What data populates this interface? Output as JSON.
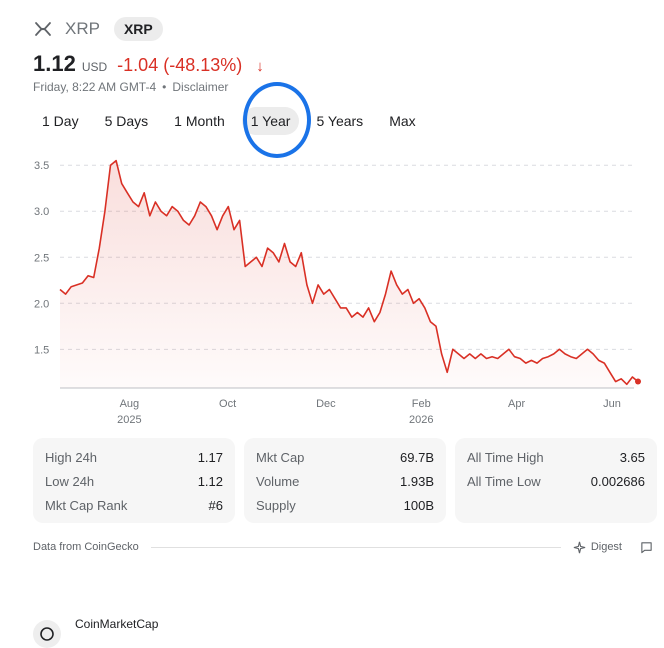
{
  "header": {
    "title": "XRP",
    "ticker": "XRP"
  },
  "price": {
    "value": "1.12",
    "currency": "USD",
    "change": "-1.04 (-48.13%)",
    "arrow": "↓"
  },
  "meta": {
    "timestamp": "Friday, 8:22 AM GMT-4",
    "separator": "•",
    "disclaimer": "Disclaimer"
  },
  "ranges": [
    "1 Day",
    "5 Days",
    "1 Month",
    "1 Year",
    "5 Years",
    "Max"
  ],
  "active_range": "1 Year",
  "colors": {
    "accent": "#d93025",
    "highlight": "#1a73e8"
  },
  "chart_data": {
    "type": "area",
    "y_ticks": [
      "3.5",
      "3.0",
      "2.5",
      "2.0",
      "1.5"
    ],
    "ylim": [
      1.08,
      3.6
    ],
    "x_ticks": [
      {
        "label": "Aug",
        "sub": "2025",
        "t": 0.12
      },
      {
        "label": "Oct",
        "sub": "",
        "t": 0.29
      },
      {
        "label": "Dec",
        "sub": "",
        "t": 0.46
      },
      {
        "label": "Feb",
        "sub": "2026",
        "t": 0.625
      },
      {
        "label": "Apr",
        "sub": "",
        "t": 0.79
      },
      {
        "label": "Jun",
        "sub": "",
        "t": 0.955
      }
    ],
    "values": [
      2.15,
      2.1,
      2.18,
      2.2,
      2.22,
      2.3,
      2.28,
      2.6,
      3.0,
      3.5,
      3.55,
      3.3,
      3.2,
      3.1,
      3.05,
      3.2,
      2.95,
      3.1,
      3.0,
      2.95,
      3.05,
      3.0,
      2.9,
      2.85,
      2.95,
      3.1,
      3.05,
      2.95,
      2.8,
      2.95,
      3.05,
      2.8,
      2.9,
      2.4,
      2.45,
      2.5,
      2.4,
      2.6,
      2.55,
      2.45,
      2.65,
      2.45,
      2.4,
      2.55,
      2.2,
      2.0,
      2.2,
      2.1,
      2.15,
      2.05,
      1.95,
      1.95,
      1.85,
      1.9,
      1.85,
      1.95,
      1.8,
      1.9,
      2.1,
      2.35,
      2.2,
      2.1,
      2.15,
      2.0,
      2.05,
      1.95,
      1.8,
      1.75,
      1.45,
      1.25,
      1.5,
      1.45,
      1.4,
      1.45,
      1.4,
      1.45,
      1.4,
      1.42,
      1.4,
      1.45,
      1.5,
      1.42,
      1.4,
      1.35,
      1.38,
      1.35,
      1.4,
      1.42,
      1.45,
      1.5,
      1.45,
      1.42,
      1.4,
      1.45,
      1.5,
      1.45,
      1.38,
      1.35,
      1.25,
      1.15,
      1.18,
      1.12,
      1.2,
      1.15
    ]
  },
  "stats": {
    "col1": [
      {
        "label": "High 24h",
        "value": "1.17"
      },
      {
        "label": "Low 24h",
        "value": "1.12"
      },
      {
        "label": "Mkt Cap Rank",
        "value": "#6"
      }
    ],
    "col2": [
      {
        "label": "Mkt Cap",
        "value": "69.7B"
      },
      {
        "label": "Volume",
        "value": "1.93B"
      },
      {
        "label": "Supply",
        "value": "100B"
      }
    ],
    "col3": [
      {
        "label": "All Time High",
        "value": "3.65"
      },
      {
        "label": "All Time Low",
        "value": "0.002686"
      }
    ]
  },
  "footer": {
    "source": "Data from CoinGecko",
    "digest": "Digest"
  },
  "below": {
    "site": "CoinMarketCap"
  },
  "icons": {
    "logo": "xrp-logo-icon",
    "digest": "sparkle-icon",
    "feedback": "feedback-icon"
  }
}
